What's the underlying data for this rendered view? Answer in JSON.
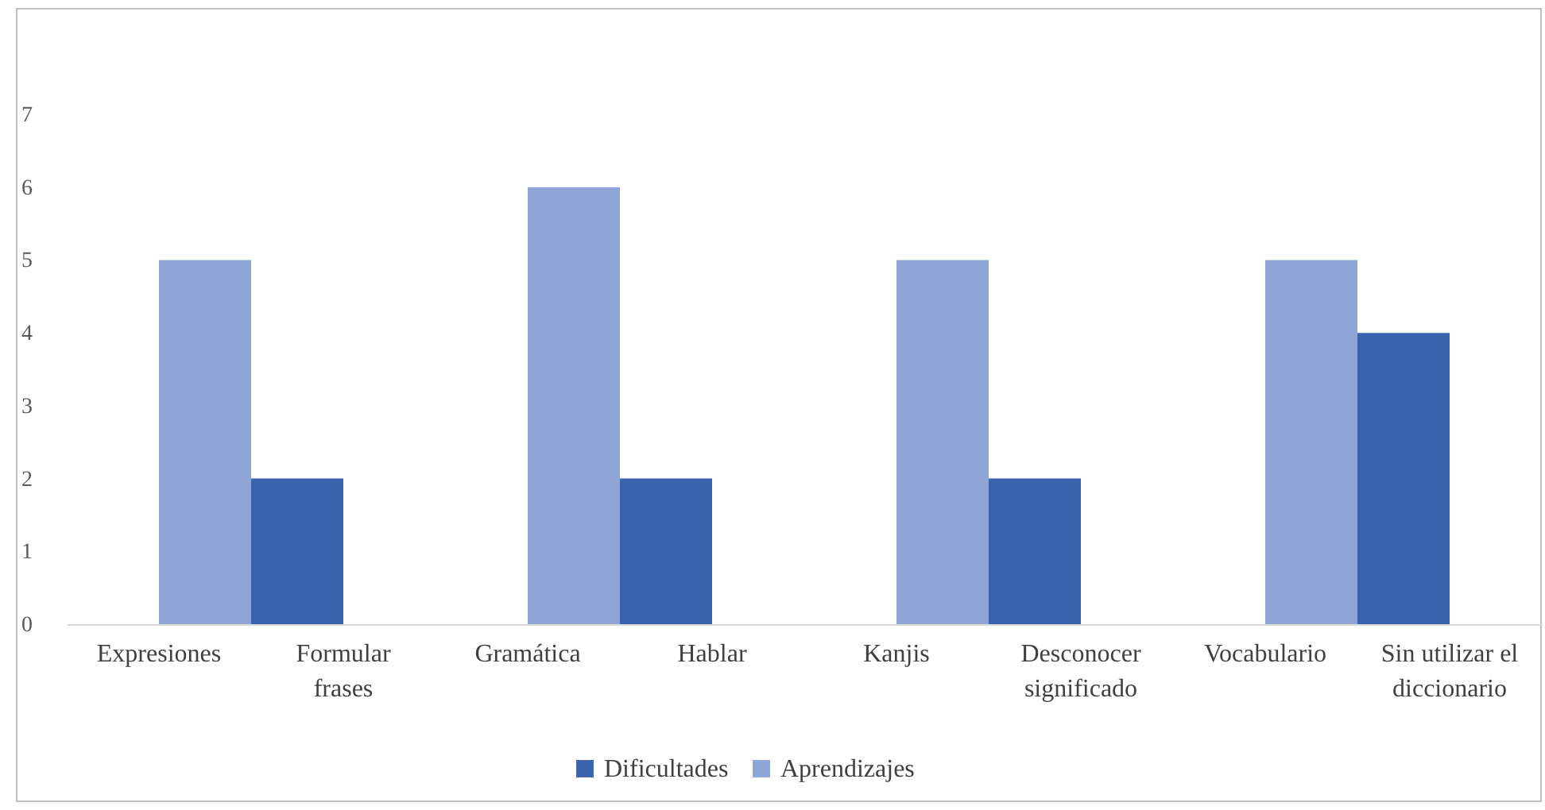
{
  "chart_data": {
    "type": "bar",
    "categories": [
      "Expresiones",
      "Formular frases",
      "Gramática",
      "Hablar",
      "Kanjis",
      "Desconocer significado",
      "Vocabulario",
      "Sin utilizar el diccionario"
    ],
    "series": [
      {
        "name": "Dificultades",
        "color": "#3a64ae",
        "values": [
          null,
          2,
          null,
          2,
          null,
          2,
          null,
          4
        ]
      },
      {
        "name": "Aprendizajes",
        "color": "#8fa5d6",
        "values": [
          5,
          null,
          6,
          null,
          5,
          null,
          5,
          null
        ]
      }
    ],
    "ylim": [
      0,
      7
    ],
    "yticks": [
      0,
      1,
      2,
      3,
      4,
      5,
      6,
      7
    ],
    "grid": false,
    "legend": "bottom"
  }
}
